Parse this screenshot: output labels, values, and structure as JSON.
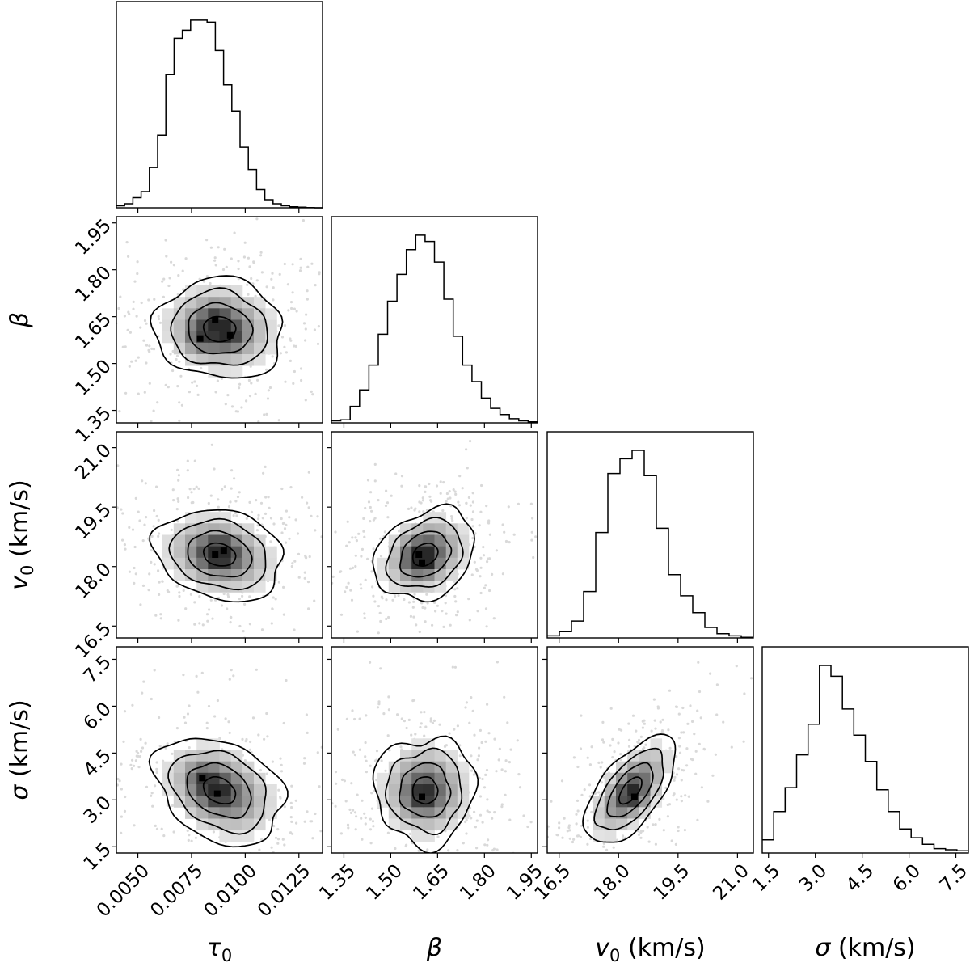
{
  "chart_data": {
    "type": "corner",
    "parameters": [
      {
        "key": "tau0",
        "label_base": "τ",
        "label_sub": "0",
        "label_suffix": "",
        "range": [
          0.004,
          0.0136
        ],
        "ticks": [
          {
            "v": 0.005,
            "label": "0.0050"
          },
          {
            "v": 0.0075,
            "label": "0.0075"
          },
          {
            "v": 0.01,
            "label": "0.0100"
          },
          {
            "v": 0.0125,
            "label": "0.0125"
          }
        ],
        "hist": [
          1,
          2,
          5,
          8,
          20,
          36,
          66,
          84,
          88,
          93,
          93,
          92,
          78,
          61,
          48,
          30,
          19,
          9,
          4,
          2,
          1,
          0.5,
          0.3,
          0.1,
          0
        ],
        "mean": 0.0088,
        "std": 0.0013
      },
      {
        "key": "beta",
        "label_base": "β",
        "label_sub": "",
        "label_suffix": "",
        "range": [
          1.31,
          1.97
        ],
        "ticks": [
          {
            "v": 1.35,
            "label": "1.35"
          },
          {
            "v": 1.5,
            "label": "1.50"
          },
          {
            "v": 1.65,
            "label": "1.65"
          },
          {
            "v": 1.8,
            "label": "1.80"
          },
          {
            "v": 1.95,
            "label": "1.95"
          }
        ],
        "hist": [
          1,
          1.5,
          8,
          16,
          28,
          43,
          59,
          72,
          84,
          91,
          88,
          78,
          60,
          42,
          28,
          20,
          12,
          7,
          4,
          2,
          1,
          0.5
        ],
        "mean": 1.61,
        "std": 0.07
      },
      {
        "key": "v0",
        "label_base": "v",
        "label_sub": "0",
        "label_suffix": " (km/s)",
        "range": [
          16.2,
          21.4
        ],
        "ticks": [
          {
            "v": 16.5,
            "label": "16.5"
          },
          {
            "v": 18.0,
            "label": "18.0"
          },
          {
            "v": 19.5,
            "label": "19.5"
          },
          {
            "v": 21.0,
            "label": "21.0"
          }
        ],
        "hist": [
          1,
          3,
          8,
          22,
          50,
          78,
          85,
          89,
          77,
          52,
          30,
          20,
          12,
          5,
          2,
          1,
          0.3
        ],
        "mean": 18.3,
        "std": 0.5
      },
      {
        "key": "sigma",
        "label_base": "σ",
        "label_sub": "",
        "label_suffix": " (km/s)",
        "range": [
          1.3,
          7.9
        ],
        "ticks": [
          {
            "v": 1.5,
            "label": "1.5"
          },
          {
            "v": 3.0,
            "label": "3.0"
          },
          {
            "v": 4.5,
            "label": "4.5"
          },
          {
            "v": 6.0,
            "label": "6.0"
          },
          {
            "v": 7.5,
            "label": "7.5"
          }
        ],
        "hist": [
          6,
          19,
          30,
          45,
          59,
          86,
          81,
          66,
          54,
          42,
          29,
          19,
          11,
          7,
          4,
          2,
          1.5,
          1
        ],
        "mean": 3.3,
        "std": 0.75
      }
    ],
    "pairs": [
      {
        "row": 1,
        "col": 0,
        "rho": -0.05,
        "peaks": [
          {
            "x": 0.0086,
            "y": 1.64
          },
          {
            "x": 0.0079,
            "y": 1.58
          },
          {
            "x": 0.0093,
            "y": 1.59
          }
        ],
        "irregular": 0.12
      },
      {
        "row": 2,
        "col": 0,
        "rho": -0.18,
        "peaks": [
          {
            "x": 0.009,
            "y": 18.4
          },
          {
            "x": 0.0086,
            "y": 18.3
          }
        ],
        "irregular": 0.1
      },
      {
        "row": 2,
        "col": 1,
        "rho": 0.25,
        "peaks": [
          {
            "x": 1.59,
            "y": 18.3
          },
          {
            "x": 1.6,
            "y": 18.1
          }
        ],
        "irregular": 0.12
      },
      {
        "row": 3,
        "col": 0,
        "rho": -0.3,
        "peaks": [
          {
            "x": 0.008,
            "y": 3.7
          },
          {
            "x": 0.0087,
            "y": 3.2
          }
        ],
        "irregular": 0.12
      },
      {
        "row": 3,
        "col": 1,
        "rho": 0.0,
        "peaks": [
          {
            "x": 1.6,
            "y": 3.1
          }
        ],
        "irregular": 0.16
      },
      {
        "row": 3,
        "col": 2,
        "rho": 0.62,
        "peaks": [
          {
            "x": 18.4,
            "y": 3.1
          }
        ],
        "irregular": 0.08
      }
    ],
    "contour_levels_sigma": [
      0.5,
      1.0,
      1.5,
      2.0
    ],
    "scatter_points_per_panel": 380
  }
}
